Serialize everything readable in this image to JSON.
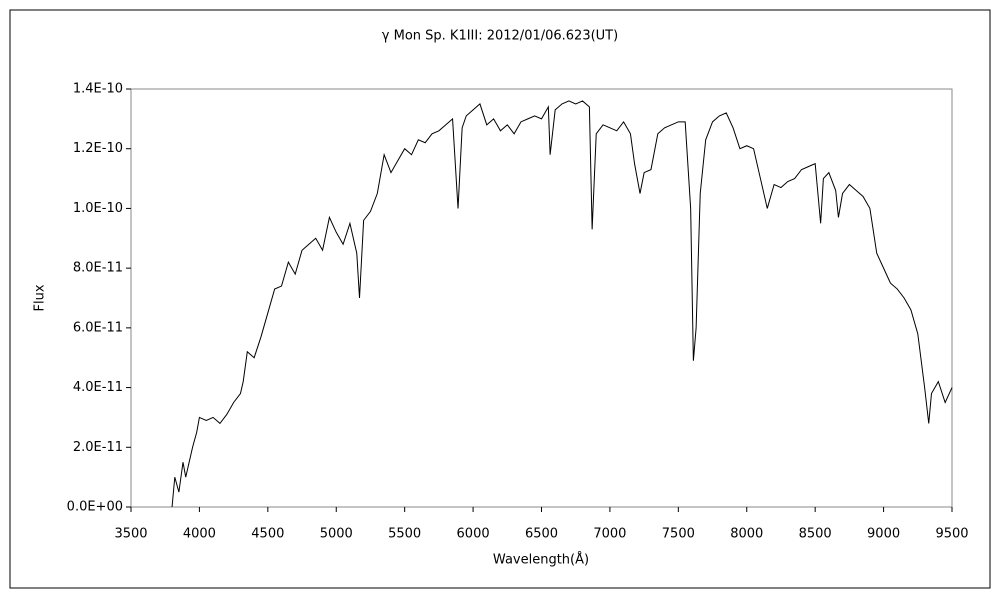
{
  "chart_data": {
    "type": "line",
    "title": "γ Mon   Sp. K1III:   2012/01/06.623(UT)",
    "x_label": "Wavelength(Å)",
    "y_label": "Flux",
    "color": "#000000",
    "grid": false,
    "xlim": [
      3500,
      9500
    ],
    "xticks": [
      3500,
      4000,
      4500,
      5000,
      5500,
      6000,
      6500,
      7000,
      7500,
      8000,
      8500,
      9000,
      9500
    ],
    "ylim": [
      0,
      1.4e-10
    ],
    "yticks": [
      {
        "value": 0,
        "label": "0.0E+00"
      },
      {
        "value": 2e-11,
        "label": "2.0E-11"
      },
      {
        "value": 4e-11,
        "label": "4.0E-11"
      },
      {
        "value": 6e-11,
        "label": "6.0E-11"
      },
      {
        "value": 8e-11,
        "label": "8.0E-11"
      },
      {
        "value": 1e-10,
        "label": "1.0E-10"
      },
      {
        "value": 1.2e-10,
        "label": "1.2E-10"
      },
      {
        "value": 1.4e-10,
        "label": "1.4E-10"
      }
    ],
    "x": [
      3800,
      3820,
      3850,
      3880,
      3900,
      3950,
      3980,
      4000,
      4050,
      4100,
      4150,
      4200,
      4250,
      4300,
      4320,
      4350,
      4400,
      4450,
      4500,
      4550,
      4600,
      4650,
      4700,
      4750,
      4800,
      4850,
      4900,
      4950,
      5000,
      5050,
      5100,
      5150,
      5170,
      5200,
      5250,
      5300,
      5350,
      5400,
      5450,
      5500,
      5550,
      5600,
      5650,
      5700,
      5750,
      5800,
      5850,
      5890,
      5920,
      5950,
      6000,
      6050,
      6100,
      6150,
      6200,
      6250,
      6300,
      6350,
      6400,
      6450,
      6500,
      6550,
      6563,
      6600,
      6650,
      6700,
      6750,
      6800,
      6850,
      6870,
      6900,
      6950,
      7000,
      7050,
      7100,
      7150,
      7180,
      7220,
      7250,
      7300,
      7350,
      7400,
      7450,
      7500,
      7550,
      7590,
      7610,
      7630,
      7660,
      7700,
      7750,
      7800,
      7850,
      7900,
      7950,
      8000,
      8050,
      8100,
      8150,
      8200,
      8250,
      8300,
      8350,
      8400,
      8450,
      8500,
      8540,
      8560,
      8600,
      8650,
      8670,
      8700,
      8750,
      8800,
      8850,
      8900,
      8950,
      9000,
      9050,
      9100,
      9150,
      9200,
      9250,
      9300,
      9330,
      9350,
      9400,
      9450,
      9500
    ],
    "values": [
      0,
      1e-11,
      5e-12,
      1.5e-11,
      1e-11,
      2e-11,
      2.5e-11,
      3e-11,
      2.9e-11,
      3e-11,
      2.8e-11,
      3.1e-11,
      3.5e-11,
      3.8e-11,
      4.2e-11,
      5.2e-11,
      5e-11,
      5.7e-11,
      6.5e-11,
      7.3e-11,
      7.4e-11,
      8.2e-11,
      7.8e-11,
      8.6e-11,
      8.8e-11,
      9e-11,
      8.6e-11,
      9.7e-11,
      9.2e-11,
      8.8e-11,
      9.5e-11,
      8.5e-11,
      7e-11,
      9.6e-11,
      9.9e-11,
      1.05e-10,
      1.18e-10,
      1.12e-10,
      1.16e-10,
      1.2e-10,
      1.18e-10,
      1.23e-10,
      1.22e-10,
      1.25e-10,
      1.26e-10,
      1.28e-10,
      1.3e-10,
      1e-10,
      1.27e-10,
      1.31e-10,
      1.33e-10,
      1.35e-10,
      1.28e-10,
      1.3e-10,
      1.26e-10,
      1.28e-10,
      1.25e-10,
      1.29e-10,
      1.3e-10,
      1.31e-10,
      1.3e-10,
      1.34e-10,
      1.18e-10,
      1.33e-10,
      1.35e-10,
      1.36e-10,
      1.35e-10,
      1.36e-10,
      1.34e-10,
      9.3e-11,
      1.25e-10,
      1.28e-10,
      1.27e-10,
      1.26e-10,
      1.29e-10,
      1.25e-10,
      1.15e-10,
      1.05e-10,
      1.12e-10,
      1.13e-10,
      1.25e-10,
      1.27e-10,
      1.28e-10,
      1.29e-10,
      1.29e-10,
      1e-10,
      4.9e-11,
      6e-11,
      1.05e-10,
      1.23e-10,
      1.29e-10,
      1.31e-10,
      1.32e-10,
      1.27e-10,
      1.2e-10,
      1.21e-10,
      1.2e-10,
      1.1e-10,
      1e-10,
      1.08e-10,
      1.07e-10,
      1.09e-10,
      1.1e-10,
      1.13e-10,
      1.14e-10,
      1.15e-10,
      9.5e-11,
      1.1e-10,
      1.12e-10,
      1.06e-10,
      9.7e-11,
      1.05e-10,
      1.08e-10,
      1.06e-10,
      1.04e-10,
      1e-10,
      8.5e-11,
      8e-11,
      7.5e-11,
      7.3e-11,
      7e-11,
      6.6e-11,
      5.8e-11,
      4e-11,
      2.8e-11,
      3.8e-11,
      4.2e-11,
      3.5e-11,
      4e-11
    ]
  }
}
